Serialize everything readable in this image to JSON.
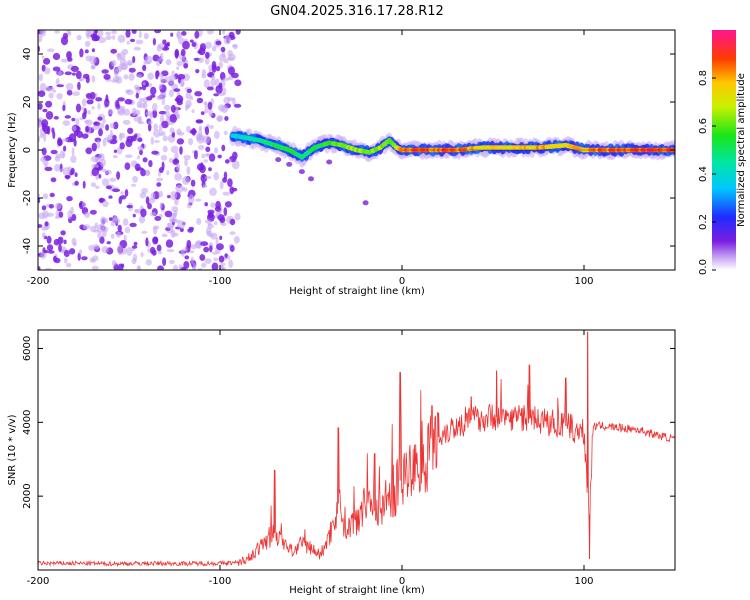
{
  "title": "GN04.2025.316.17.28.R12",
  "colors": {
    "snr_line": "#ee3333",
    "ridge": "#dd3333",
    "scatter": "#7a1fe0",
    "scatter_light": "#c7a6f2",
    "frame": "#000000"
  },
  "chart_data": [
    {
      "id": "spectrogram",
      "type": "heatmap",
      "xlabel": "Height of straight line (km)",
      "ylabel": "Frequency (Hz)",
      "xlim": [
        -200,
        150
      ],
      "ylim": [
        -50,
        50
      ],
      "xticks": [
        -200,
        -100,
        0,
        100
      ],
      "yticks": [
        -40,
        -20,
        0,
        20,
        40
      ],
      "colorbar": {
        "label": "Normalized spectral amplitude",
        "range": [
          0.0,
          1.0
        ],
        "ticks": [
          0.0,
          0.2,
          0.4,
          0.6,
          0.8
        ],
        "tick_labels": [
          "0.0",
          "0.2",
          "0.4",
          "0.6",
          "0.8"
        ]
      },
      "noise_region_x": [
        -200,
        -90
      ],
      "ridge": {
        "x": [
          -93,
          -85,
          -78,
          -70,
          -62,
          -55,
          -48,
          -40,
          -33,
          -25,
          -18,
          -12,
          -7,
          -3,
          0,
          10,
          30,
          45,
          60,
          75,
          90,
          100,
          110,
          130,
          150
        ],
        "frequency": [
          6,
          5,
          4,
          2,
          0,
          -3,
          1,
          3,
          2,
          0,
          -1,
          1,
          4,
          1,
          0,
          0,
          0,
          1,
          1,
          1,
          2,
          0,
          0,
          0,
          0
        ],
        "amplitude": [
          0.4,
          0.45,
          0.5,
          0.55,
          0.6,
          0.5,
          0.55,
          0.6,
          0.7,
          0.7,
          0.65,
          0.7,
          0.6,
          0.7,
          0.9,
          0.95,
          0.9,
          0.8,
          0.8,
          0.85,
          0.8,
          0.85,
          0.9,
          0.95,
          0.95
        ]
      }
    },
    {
      "id": "snr",
      "type": "line",
      "xlabel": "Height of straight line (km)",
      "ylabel": "SNR (10 * v/v)",
      "xlim": [
        -200,
        150
      ],
      "ylim": [
        0,
        6500
      ],
      "xticks": [
        -200,
        -100,
        0,
        100
      ],
      "yticks": [
        2000,
        4000,
        6000
      ],
      "series": [
        {
          "name": "SNR",
          "x": [
            -200,
            -180,
            -160,
            -140,
            -120,
            -100,
            -90,
            -85,
            -80,
            -75,
            -70,
            -65,
            -60,
            -55,
            -50,
            -45,
            -40,
            -35,
            -30,
            -25,
            -20,
            -15,
            -10,
            -5,
            0,
            5,
            10,
            15,
            20,
            25,
            30,
            40,
            50,
            60,
            70,
            80,
            90,
            95,
            100,
            103,
            105,
            110,
            120,
            130,
            140,
            150
          ],
          "values": [
            180,
            180,
            170,
            180,
            175,
            180,
            200,
            300,
            500,
            800,
            1000,
            700,
            500,
            700,
            600,
            400,
            900,
            1800,
            1100,
            1400,
            2000,
            1600,
            1800,
            2100,
            2500,
            2600,
            3000,
            3300,
            3600,
            3800,
            3900,
            4100,
            4150,
            4150,
            4100,
            4000,
            3900,
            3800,
            3700,
            1500,
            3900,
            3900,
            3850,
            3800,
            3650,
            3550
          ]
        }
      ],
      "spikes": [
        {
          "x": -70,
          "value": 2700
        },
        {
          "x": -35,
          "value": 3850
        },
        {
          "x": -15,
          "value": 3150
        },
        {
          "x": -1,
          "value": 5350
        },
        {
          "x": 20,
          "value": 4250
        },
        {
          "x": 38,
          "value": 4700
        },
        {
          "x": 52,
          "value": 5400
        },
        {
          "x": 70,
          "value": 5550
        },
        {
          "x": 90,
          "value": 5200
        },
        {
          "x": 102,
          "value": 6450
        },
        {
          "x": 103,
          "value": 300
        }
      ]
    }
  ]
}
